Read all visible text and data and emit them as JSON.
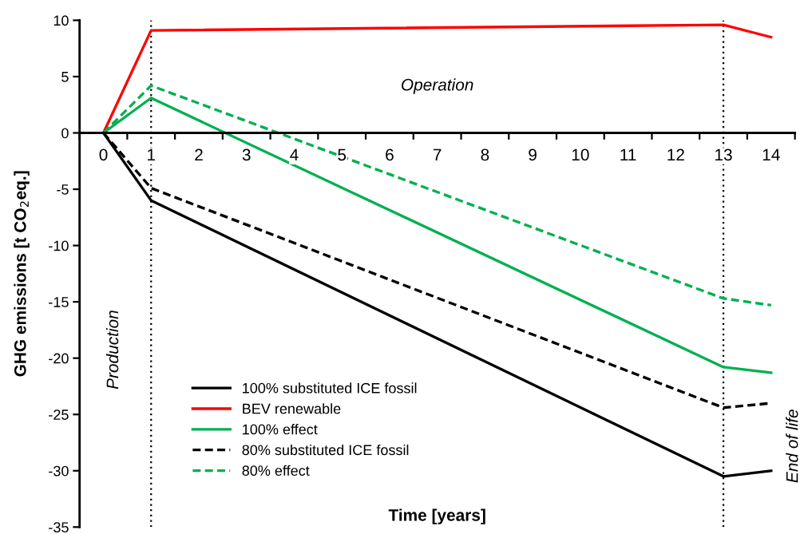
{
  "chart_data": {
    "type": "line",
    "xlabel": "Time [years]",
    "ylabel": "GHG emissions [t CO$_{2}$eq.]",
    "x": [
      0,
      1,
      13,
      14
    ],
    "series": [
      {
        "name": "100% substituted ICE fossil",
        "color": "#000000",
        "line_style": "solid",
        "values": [
          0,
          -6.0,
          -30.5,
          -30.0
        ]
      },
      {
        "name": "BEV renewable",
        "color": "#ff0000",
        "line_style": "solid",
        "values": [
          0,
          9.1,
          9.6,
          8.5
        ]
      },
      {
        "name": "100% effect",
        "color": "#00b050",
        "line_style": "solid",
        "values": [
          0,
          3.1,
          -20.8,
          -21.3
        ]
      },
      {
        "name": "80% substituted ICE fossil",
        "color": "#000000",
        "line_style": "dashed",
        "values": [
          0,
          -4.9,
          -24.4,
          -24.0
        ]
      },
      {
        "name": "80% effect",
        "color": "#00b050",
        "line_style": "dashed",
        "values": [
          0,
          4.2,
          -14.7,
          -15.3
        ]
      }
    ],
    "xlim": [
      -0.5,
      14.5
    ],
    "xticks": [
      {
        "value": -0.5,
        "label": null
      },
      0,
      {
        "value": 0.5,
        "label": null
      },
      1,
      {
        "value": 1.5,
        "label": null
      },
      2,
      {
        "value": 2.5,
        "label": null
      },
      3,
      {
        "value": 3.5,
        "label": null
      },
      4,
      {
        "value": 4.5,
        "label": null
      },
      5,
      {
        "value": 5.5,
        "label": null
      },
      6,
      {
        "value": 6.5,
        "label": null
      },
      7,
      {
        "value": 7.5,
        "label": null
      },
      8,
      {
        "value": 8.5,
        "label": null
      },
      9,
      {
        "value": 9.5,
        "label": null
      },
      10,
      {
        "value": 10.5,
        "label": null
      },
      11,
      {
        "value": 11.5,
        "label": null
      },
      12,
      {
        "value": 12.5,
        "label": null
      },
      13,
      {
        "value": 13.5,
        "label": null
      },
      14,
      {
        "value": 14.5,
        "label": null
      }
    ],
    "ylim": [
      -35,
      10
    ],
    "yticks": [
      -35,
      -30,
      -25,
      -20,
      -15,
      -10,
      -5,
      0,
      5,
      10
    ],
    "ref_lines": [
      {
        "axis": "x",
        "value": 1,
        "line_style": "dotted",
        "color": "#000000"
      },
      {
        "axis": "x",
        "value": 13,
        "line_style": "dotted",
        "color": "#000000"
      }
    ],
    "annotations": [
      "Operation",
      "Production",
      "End of life"
    ],
    "grid": false,
    "legend": "bottom left",
    "marker": "none"
  }
}
